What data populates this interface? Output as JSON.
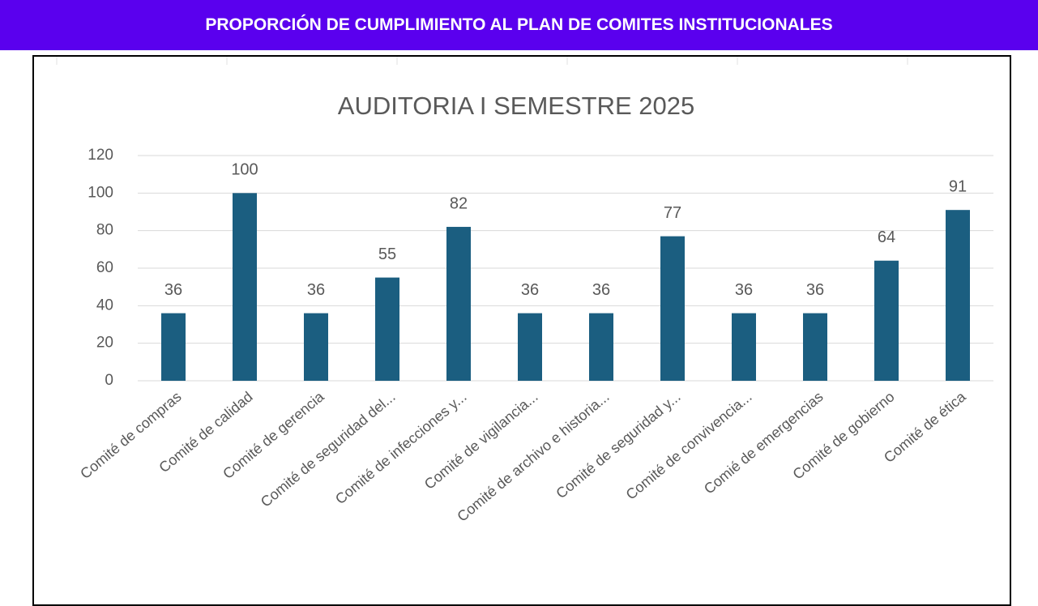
{
  "header": {
    "title": "PROPORCIÓN DE CUMPLIMIENTO AL PLAN DE COMITES INSTITUCIONALES"
  },
  "chart_data": {
    "type": "bar",
    "title": "AUDITORIA I SEMESTRE 2025",
    "categories": [
      "Comité de compras",
      "Comité de calidad",
      "Comité de gerencia",
      "Comité de seguridad del...",
      "Comité de infecciones y...",
      "Comité de vigilancia...",
      "Comité de archivo e historia...",
      "Comité de seguridad y...",
      "Comité de convivencia...",
      "Comié de emergencias",
      "Comité de gobierno",
      "Comité de ética"
    ],
    "values": [
      36,
      100,
      36,
      55,
      82,
      36,
      36,
      77,
      36,
      36,
      64,
      91
    ],
    "color": "#1b5e80",
    "ylim": [
      0,
      120
    ],
    "yticks": [
      0,
      20,
      40,
      60,
      80,
      100,
      120
    ],
    "grid": true
  }
}
